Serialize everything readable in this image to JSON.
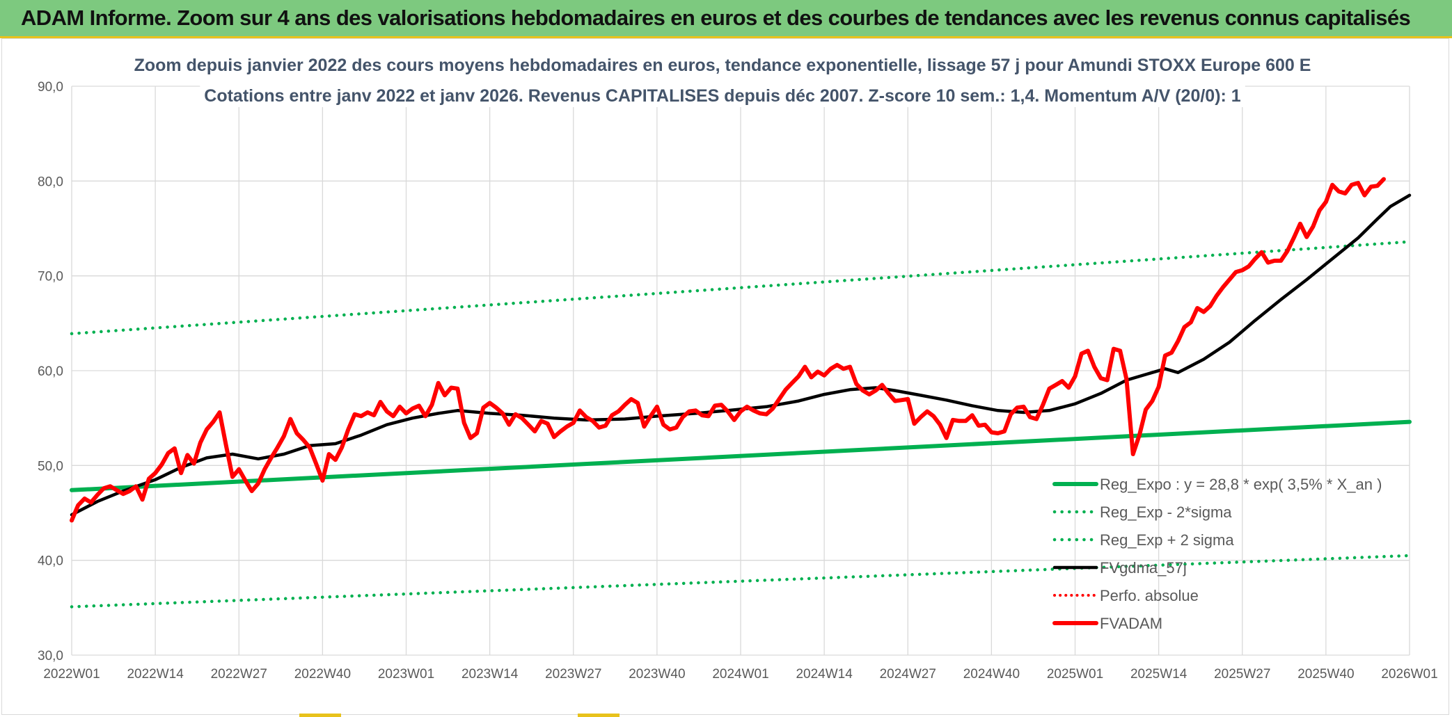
{
  "banner": {
    "title": "ADAM Informe. Zoom sur 4 ans des valorisations hebdomadaires en euros et des courbes de tendances avec les revenus connus capitalisés"
  },
  "colors": {
    "banner_bg": "#7dc97f",
    "accent": "#e8c21c",
    "regression": "#00b050",
    "moving_average": "#000000",
    "fvadam": "#ff0000"
  },
  "chart_data": {
    "type": "line",
    "title_line1": "Zoom depuis janvier 2022 des cours moyens hebdomadaires en euros, tendance exponentielle, lissage 57 j pour Amundi STOXX Europe 600 E",
    "title_line2": "Cotations entre janv 2022 et janv 2026. Revenus CAPITALISES depuis déc 2007. Z-score 10 sem.: 1,4. Momentum A/V (20/0): 1",
    "ylim": [
      30,
      90
    ],
    "y_ticks": [
      "30,0",
      "40,0",
      "50,0",
      "60,0",
      "70,0",
      "80,0",
      "90,0"
    ],
    "x_range": [
      0,
      208
    ],
    "x_ticks": [
      {
        "label": "2022W01",
        "x": 0
      },
      {
        "label": "2022W14",
        "x": 13
      },
      {
        "label": "2022W27",
        "x": 26
      },
      {
        "label": "2022W40",
        "x": 39
      },
      {
        "label": "2023W01",
        "x": 52
      },
      {
        "label": "2023W14",
        "x": 65
      },
      {
        "label": "2023W27",
        "x": 78
      },
      {
        "label": "2023W40",
        "x": 91
      },
      {
        "label": "2024W01",
        "x": 104
      },
      {
        "label": "2024W14",
        "x": 117
      },
      {
        "label": "2024W27",
        "x": 130
      },
      {
        "label": "2024W40",
        "x": 143
      },
      {
        "label": "2025W01",
        "x": 156
      },
      {
        "label": "2025W14",
        "x": 169
      },
      {
        "label": "2025W27",
        "x": 182
      },
      {
        "label": "2025W40",
        "x": 195
      },
      {
        "label": "2026W01",
        "x": 208
      }
    ],
    "series": [
      {
        "name": "Reg_Expo : y = 28,8 * exp( 3,5% *  X_an )",
        "style": "solid-green",
        "points": [
          [
            0,
            47.4
          ],
          [
            208,
            54.6
          ]
        ]
      },
      {
        "name": "Reg_Exp - 2*sigma",
        "style": "dotted-green",
        "points": [
          [
            0,
            35.1
          ],
          [
            208,
            40.5
          ]
        ]
      },
      {
        "name": "Reg_Exp + 2 sigma",
        "style": "dotted-green",
        "points": [
          [
            0,
            63.9
          ],
          [
            208,
            73.6
          ]
        ]
      },
      {
        "name": "FVgdma_57j",
        "style": "solid-black",
        "points": [
          [
            0,
            44.8
          ],
          [
            4,
            46.2
          ],
          [
            8,
            47.3
          ],
          [
            13,
            48.5
          ],
          [
            17,
            49.8
          ],
          [
            21,
            50.8
          ],
          [
            25,
            51.2
          ],
          [
            29,
            50.7
          ],
          [
            33,
            51.2
          ],
          [
            37,
            52.1
          ],
          [
            41,
            52.3
          ],
          [
            45,
            53.2
          ],
          [
            49,
            54.3
          ],
          [
            53,
            55.0
          ],
          [
            57,
            55.5
          ],
          [
            60,
            55.8
          ],
          [
            65,
            55.5
          ],
          [
            70,
            55.3
          ],
          [
            75,
            55.0
          ],
          [
            80,
            54.8
          ],
          [
            86,
            54.9
          ],
          [
            91,
            55.2
          ],
          [
            97,
            55.5
          ],
          [
            102,
            55.8
          ],
          [
            108,
            56.2
          ],
          [
            113,
            56.8
          ],
          [
            117,
            57.5
          ],
          [
            121,
            58.0
          ],
          [
            125,
            58.2
          ],
          [
            128,
            57.9
          ],
          [
            132,
            57.4
          ],
          [
            136,
            56.9
          ],
          [
            140,
            56.3
          ],
          [
            144,
            55.8
          ],
          [
            148,
            55.6
          ],
          [
            152,
            55.8
          ],
          [
            156,
            56.5
          ],
          [
            160,
            57.6
          ],
          [
            164,
            59.0
          ],
          [
            168,
            59.8
          ],
          [
            170,
            60.2
          ],
          [
            172,
            59.8
          ],
          [
            176,
            61.2
          ],
          [
            180,
            63.0
          ],
          [
            184,
            65.3
          ],
          [
            188,
            67.5
          ],
          [
            192,
            69.6
          ],
          [
            196,
            71.8
          ],
          [
            200,
            74.0
          ],
          [
            203,
            76.0
          ],
          [
            205,
            77.3
          ],
          [
            208,
            78.5
          ]
        ]
      },
      {
        "name": "Perfo. absolue",
        "style": "dotted-red",
        "points": []
      },
      {
        "name": "FVADAM",
        "style": "solid-red",
        "points": [
          [
            0,
            44.2
          ],
          [
            1,
            45.8
          ],
          [
            2,
            46.5
          ],
          [
            3,
            46.1
          ],
          [
            4,
            46.9
          ],
          [
            5,
            47.6
          ],
          [
            6,
            47.8
          ],
          [
            7,
            47.4
          ],
          [
            8,
            47.0
          ],
          [
            9,
            47.3
          ],
          [
            10,
            47.8
          ],
          [
            11,
            46.4
          ],
          [
            12,
            48.6
          ],
          [
            13,
            49.2
          ],
          [
            14,
            50.1
          ],
          [
            15,
            51.3
          ],
          [
            16,
            51.8
          ],
          [
            17,
            49.2
          ],
          [
            18,
            51.1
          ],
          [
            19,
            50.2
          ],
          [
            20,
            52.4
          ],
          [
            21,
            53.8
          ],
          [
            22,
            54.6
          ],
          [
            23,
            55.6
          ],
          [
            24,
            52.1
          ],
          [
            25,
            48.8
          ],
          [
            26,
            49.6
          ],
          [
            27,
            48.4
          ],
          [
            28,
            47.3
          ],
          [
            29,
            48.1
          ],
          [
            30,
            49.6
          ],
          [
            31,
            50.8
          ],
          [
            32,
            51.9
          ],
          [
            33,
            53.1
          ],
          [
            34,
            54.9
          ],
          [
            35,
            53.4
          ],
          [
            36,
            52.7
          ],
          [
            37,
            51.9
          ],
          [
            38,
            50.2
          ],
          [
            39,
            48.4
          ],
          [
            40,
            51.2
          ],
          [
            41,
            50.6
          ],
          [
            42,
            51.9
          ],
          [
            43,
            53.8
          ],
          [
            44,
            55.4
          ],
          [
            45,
            55.2
          ],
          [
            46,
            55.6
          ],
          [
            47,
            55.3
          ],
          [
            48,
            56.7
          ],
          [
            49,
            55.7
          ],
          [
            50,
            55.2
          ],
          [
            51,
            56.2
          ],
          [
            52,
            55.5
          ],
          [
            53,
            56.0
          ],
          [
            54,
            56.3
          ],
          [
            55,
            55.2
          ],
          [
            56,
            56.4
          ],
          [
            57,
            58.7
          ],
          [
            58,
            57.4
          ],
          [
            59,
            58.2
          ],
          [
            60,
            58.1
          ],
          [
            61,
            54.5
          ],
          [
            62,
            52.9
          ],
          [
            63,
            53.4
          ],
          [
            64,
            56.1
          ],
          [
            65,
            56.6
          ],
          [
            66,
            56.1
          ],
          [
            67,
            55.5
          ],
          [
            68,
            54.3
          ],
          [
            69,
            55.4
          ],
          [
            70,
            55.0
          ],
          [
            71,
            54.3
          ],
          [
            72,
            53.6
          ],
          [
            73,
            54.7
          ],
          [
            74,
            54.4
          ],
          [
            75,
            53.0
          ],
          [
            76,
            53.6
          ],
          [
            77,
            54.1
          ],
          [
            78,
            54.5
          ],
          [
            79,
            55.8
          ],
          [
            80,
            55.1
          ],
          [
            81,
            54.7
          ],
          [
            82,
            54.0
          ],
          [
            83,
            54.2
          ],
          [
            84,
            55.3
          ],
          [
            85,
            55.7
          ],
          [
            86,
            56.4
          ],
          [
            87,
            57.0
          ],
          [
            88,
            56.6
          ],
          [
            89,
            54.1
          ],
          [
            90,
            55.2
          ],
          [
            91,
            56.2
          ],
          [
            92,
            54.3
          ],
          [
            93,
            53.8
          ],
          [
            94,
            54.0
          ],
          [
            95,
            55.1
          ],
          [
            96,
            55.7
          ],
          [
            97,
            55.8
          ],
          [
            98,
            55.3
          ],
          [
            99,
            55.2
          ],
          [
            100,
            56.3
          ],
          [
            101,
            56.4
          ],
          [
            102,
            55.7
          ],
          [
            103,
            54.8
          ],
          [
            104,
            55.7
          ],
          [
            105,
            56.2
          ],
          [
            106,
            55.8
          ],
          [
            107,
            55.5
          ],
          [
            108,
            55.4
          ],
          [
            109,
            56.0
          ],
          [
            110,
            57.0
          ],
          [
            111,
            58.0
          ],
          [
            112,
            58.7
          ],
          [
            113,
            59.4
          ],
          [
            114,
            60.4
          ],
          [
            115,
            59.3
          ],
          [
            116,
            59.9
          ],
          [
            117,
            59.5
          ],
          [
            118,
            60.2
          ],
          [
            119,
            60.6
          ],
          [
            120,
            60.2
          ],
          [
            121,
            60.4
          ],
          [
            122,
            58.6
          ],
          [
            123,
            57.9
          ],
          [
            124,
            57.5
          ],
          [
            125,
            57.9
          ],
          [
            126,
            58.5
          ],
          [
            127,
            57.6
          ],
          [
            128,
            56.8
          ],
          [
            129,
            56.9
          ],
          [
            130,
            57.0
          ],
          [
            131,
            54.4
          ],
          [
            132,
            55.1
          ],
          [
            133,
            55.7
          ],
          [
            134,
            55.2
          ],
          [
            135,
            54.3
          ],
          [
            136,
            52.9
          ],
          [
            137,
            54.8
          ],
          [
            138,
            54.7
          ],
          [
            139,
            54.7
          ],
          [
            140,
            55.3
          ],
          [
            141,
            54.2
          ],
          [
            142,
            54.3
          ],
          [
            143,
            53.5
          ],
          [
            144,
            53.4
          ],
          [
            145,
            53.6
          ],
          [
            146,
            55.4
          ],
          [
            147,
            56.1
          ],
          [
            148,
            56.2
          ],
          [
            149,
            55.1
          ],
          [
            150,
            54.9
          ],
          [
            151,
            56.4
          ],
          [
            152,
            58.1
          ],
          [
            153,
            58.5
          ],
          [
            154,
            58.9
          ],
          [
            155,
            58.2
          ],
          [
            156,
            59.4
          ],
          [
            157,
            61.8
          ],
          [
            158,
            62.1
          ],
          [
            159,
            60.4
          ],
          [
            160,
            59.2
          ],
          [
            161,
            59.0
          ],
          [
            162,
            62.3
          ],
          [
            163,
            62.1
          ],
          [
            164,
            59.1
          ],
          [
            165,
            51.2
          ],
          [
            166,
            53.2
          ],
          [
            167,
            55.9
          ],
          [
            168,
            56.8
          ],
          [
            169,
            58.3
          ],
          [
            170,
            61.6
          ],
          [
            171,
            61.9
          ],
          [
            172,
            63.1
          ],
          [
            173,
            64.6
          ],
          [
            174,
            65.1
          ],
          [
            175,
            66.6
          ],
          [
            176,
            66.2
          ],
          [
            177,
            66.8
          ],
          [
            178,
            67.9
          ],
          [
            179,
            68.8
          ],
          [
            180,
            69.6
          ],
          [
            181,
            70.4
          ],
          [
            182,
            70.6
          ],
          [
            183,
            71.0
          ],
          [
            184,
            71.8
          ],
          [
            185,
            72.5
          ],
          [
            186,
            71.4
          ],
          [
            187,
            71.6
          ],
          [
            188,
            71.6
          ],
          [
            189,
            72.6
          ],
          [
            190,
            74.0
          ],
          [
            191,
            75.5
          ],
          [
            192,
            74.1
          ],
          [
            193,
            75.2
          ],
          [
            194,
            76.9
          ],
          [
            195,
            77.8
          ],
          [
            196,
            79.6
          ],
          [
            197,
            78.9
          ],
          [
            198,
            78.7
          ],
          [
            199,
            79.6
          ],
          [
            200,
            79.8
          ],
          [
            201,
            78.5
          ],
          [
            202,
            79.4
          ],
          [
            203,
            79.5
          ],
          [
            204,
            80.2
          ]
        ]
      }
    ],
    "legend_position": "bottom-right",
    "grid": true
  }
}
